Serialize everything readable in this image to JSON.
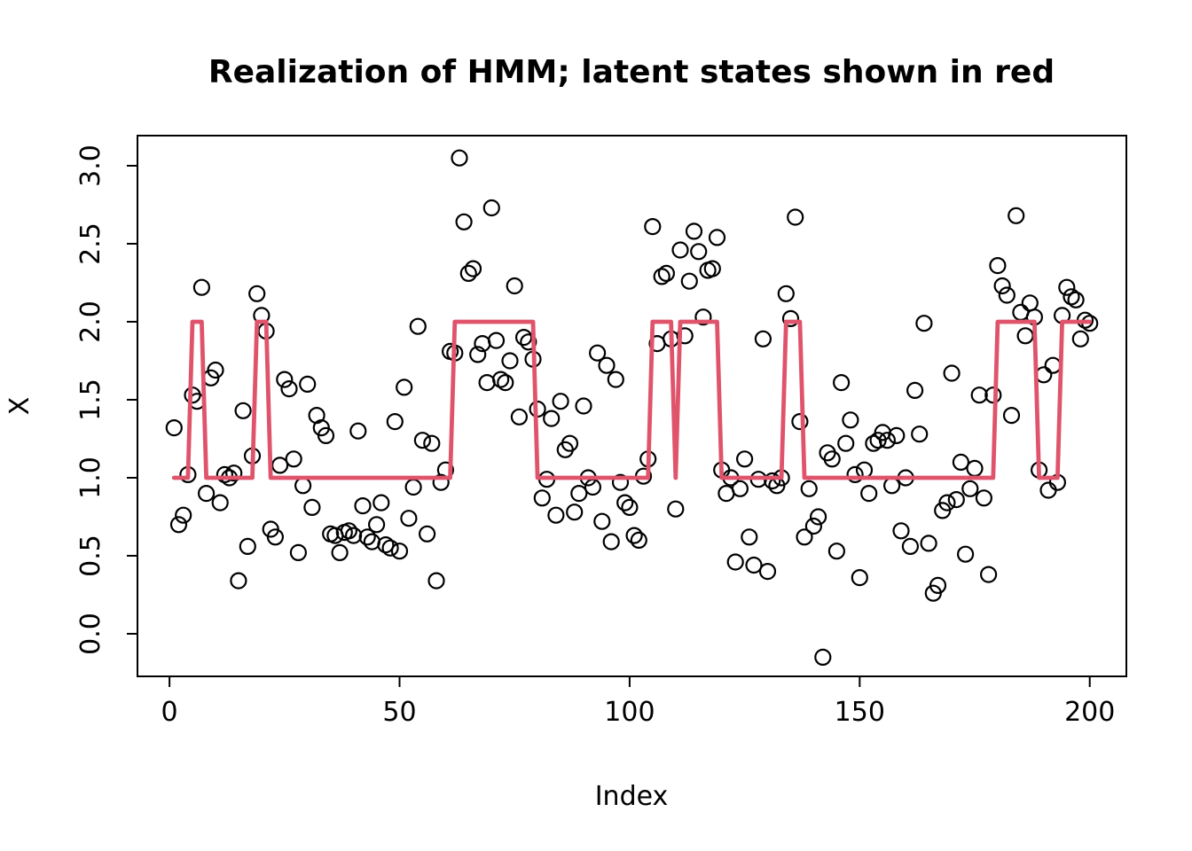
{
  "title": "Realization of HMM; latent states shown in red",
  "chart_data": {
    "type": "scatter",
    "title": "Realization of HMM; latent states shown in red",
    "xlabel": "Index",
    "ylabel": "X",
    "grid": false,
    "legend": "none",
    "xlim": [
      -6.96,
      207.96
    ],
    "ylim": [
      -0.273,
      3.193
    ],
    "x_ticks": [
      "0",
      "50",
      "100",
      "150",
      "200"
    ],
    "x_tick_values": [
      0,
      50,
      100,
      150,
      200
    ],
    "y_ticks": [
      "0.0",
      "0.5",
      "1.0",
      "1.5",
      "2.0",
      "2.5",
      "3.0"
    ],
    "y_tick_values": [
      0.0,
      0.5,
      1.0,
      1.5,
      2.0,
      2.5,
      3.0
    ],
    "x_start": 1,
    "colors": {
      "points": "#000000",
      "latent_line": "#DF536B"
    },
    "series": [
      {
        "name": "observations",
        "type": "scatter",
        "marker": "open-circle",
        "color": "#000000",
        "values": [
          1.32,
          0.7,
          0.76,
          1.02,
          1.53,
          1.49,
          2.22,
          0.9,
          1.64,
          1.69,
          0.84,
          1.02,
          1.0,
          1.03,
          0.34,
          1.43,
          0.56,
          1.14,
          2.18,
          2.04,
          1.94,
          0.67,
          0.62,
          1.08,
          1.63,
          1.57,
          1.12,
          0.52,
          0.95,
          1.6,
          0.81,
          1.4,
          1.32,
          1.27,
          0.64,
          0.63,
          0.52,
          0.65,
          0.66,
          0.63,
          1.3,
          0.82,
          0.62,
          0.59,
          0.7,
          0.84,
          0.57,
          0.55,
          1.36,
          0.53,
          1.58,
          0.74,
          0.94,
          1.97,
          1.24,
          0.64,
          1.22,
          0.34,
          0.97,
          1.05,
          1.81,
          1.8,
          3.05,
          2.64,
          2.31,
          2.34,
          1.79,
          1.86,
          1.61,
          2.73,
          1.88,
          1.63,
          1.61,
          1.75,
          2.23,
          1.39,
          1.9,
          1.87,
          1.76,
          1.44,
          0.87,
          0.99,
          1.38,
          0.76,
          1.49,
          1.18,
          1.22,
          0.78,
          0.9,
          1.46,
          1.0,
          0.94,
          1.8,
          0.72,
          1.72,
          0.59,
          1.63,
          0.97,
          0.84,
          0.81,
          0.63,
          0.6,
          1.01,
          1.12,
          2.61,
          1.86,
          2.29,
          2.31,
          1.89,
          0.8,
          2.46,
          1.91,
          2.26,
          2.58,
          2.45,
          2.03,
          2.33,
          2.34,
          2.54,
          1.05,
          0.9,
          1.0,
          0.46,
          0.93,
          1.12,
          0.62,
          0.44,
          0.99,
          1.89,
          0.4,
          0.98,
          0.95,
          1.0,
          2.18,
          2.02,
          2.67,
          1.36,
          0.62,
          0.93,
          0.69,
          0.75,
          -0.15,
          1.16,
          1.12,
          0.53,
          1.61,
          1.22,
          1.37,
          1.02,
          0.36,
          1.05,
          0.9,
          1.22,
          1.24,
          1.29,
          1.24,
          0.95,
          1.27,
          0.66,
          1.0,
          0.56,
          1.56,
          1.28,
          1.99,
          0.58,
          0.26,
          0.31,
          0.79,
          0.84,
          1.67,
          0.86,
          1.1,
          0.51,
          0.93,
          1.06,
          1.53,
          0.87,
          0.38,
          1.53,
          2.36,
          2.23,
          2.17,
          1.4,
          2.68,
          2.06,
          1.91,
          2.12,
          2.03,
          1.05,
          1.66,
          0.92,
          1.72,
          0.97,
          2.04,
          2.22,
          2.16,
          2.14,
          1.89,
          2.01,
          1.99
        ]
      },
      {
        "name": "latent_states",
        "type": "step-line",
        "color": "#DF536B",
        "values": [
          1,
          1,
          1,
          1,
          2,
          2,
          2,
          1,
          1,
          1,
          1,
          1,
          1,
          1,
          1,
          1,
          1,
          1,
          2,
          2,
          2,
          1,
          1,
          1,
          1,
          1,
          1,
          1,
          1,
          1,
          1,
          1,
          1,
          1,
          1,
          1,
          1,
          1,
          1,
          1,
          1,
          1,
          1,
          1,
          1,
          1,
          1,
          1,
          1,
          1,
          1,
          1,
          1,
          1,
          1,
          1,
          1,
          1,
          1,
          1,
          1,
          2,
          2,
          2,
          2,
          2,
          2,
          2,
          2,
          2,
          2,
          2,
          2,
          2,
          2,
          2,
          2,
          2,
          2,
          1,
          1,
          1,
          1,
          1,
          1,
          1,
          1,
          1,
          1,
          1,
          1,
          1,
          1,
          1,
          1,
          1,
          1,
          1,
          1,
          1,
          1,
          1,
          1,
          1,
          2,
          2,
          2,
          2,
          2,
          1,
          2,
          2,
          2,
          2,
          2,
          2,
          2,
          2,
          2,
          1,
          1,
          1,
          1,
          1,
          1,
          1,
          1,
          1,
          1,
          1,
          1,
          1,
          1,
          2,
          2,
          2,
          2,
          1,
          1,
          1,
          1,
          1,
          1,
          1,
          1,
          1,
          1,
          1,
          1,
          1,
          1,
          1,
          1,
          1,
          1,
          1,
          1,
          1,
          1,
          1,
          1,
          1,
          1,
          1,
          1,
          1,
          1,
          1,
          1,
          1,
          1,
          1,
          1,
          1,
          1,
          1,
          1,
          1,
          1,
          2,
          2,
          2,
          2,
          2,
          2,
          2,
          2,
          2,
          1,
          1,
          1,
          1,
          1,
          2,
          2,
          2,
          2,
          2,
          2,
          2
        ]
      }
    ]
  }
}
